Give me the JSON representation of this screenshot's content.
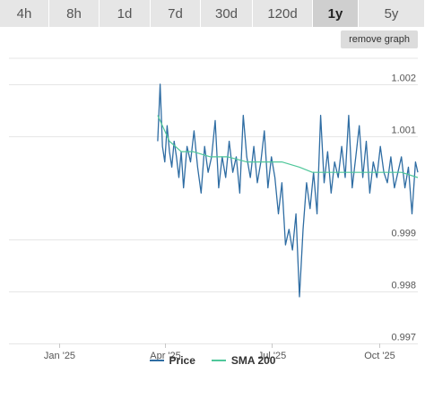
{
  "timeframe_tabs": [
    {
      "label": "4h",
      "active": false
    },
    {
      "label": "8h",
      "active": false
    },
    {
      "label": "1d",
      "active": false
    },
    {
      "label": "7d",
      "active": false
    },
    {
      "label": "30d",
      "active": false
    },
    {
      "label": "120d",
      "active": false
    },
    {
      "label": "1y",
      "active": true
    },
    {
      "label": "5y",
      "active": false
    }
  ],
  "remove_graph_label": "remove graph",
  "colors": {
    "price": "#2f6da3",
    "sma": "#4fc79a",
    "grid": "#e6e6e6",
    "text": "#555555"
  },
  "chart_data": {
    "type": "line",
    "title": "",
    "xlabel": "",
    "ylabel": "",
    "ylim": [
      0.997,
      1.0025
    ],
    "xlim": [
      "2024-11-19",
      "2025-11-03"
    ],
    "x_ticks": [
      {
        "date": "2025-01-01",
        "label": "Jan '25"
      },
      {
        "date": "2025-04-01",
        "label": "Apr '25"
      },
      {
        "date": "2025-07-01",
        "label": "Jul '25"
      },
      {
        "date": "2025-10-01",
        "label": "Oct '25"
      }
    ],
    "y_ticks": [
      {
        "value": 1.002,
        "label": "1.002"
      },
      {
        "value": 1.001,
        "label": "1.001"
      },
      {
        "value": 0.999,
        "label": "0.999"
      },
      {
        "value": 0.998,
        "label": "0.998"
      },
      {
        "value": 0.997,
        "label": "0.997"
      }
    ],
    "legend_position": "bottom",
    "series": [
      {
        "name": "Price",
        "x": [
          "2025-03-26",
          "2025-03-28",
          "2025-03-30",
          "2025-04-01",
          "2025-04-03",
          "2025-04-05",
          "2025-04-07",
          "2025-04-09",
          "2025-04-11",
          "2025-04-13",
          "2025-04-15",
          "2025-04-17",
          "2025-04-20",
          "2025-04-23",
          "2025-04-26",
          "2025-04-29",
          "2025-05-02",
          "2025-05-05",
          "2025-05-08",
          "2025-05-11",
          "2025-05-14",
          "2025-05-17",
          "2025-05-20",
          "2025-05-23",
          "2025-05-26",
          "2025-05-29",
          "2025-06-01",
          "2025-06-04",
          "2025-06-07",
          "2025-06-10",
          "2025-06-13",
          "2025-06-16",
          "2025-06-19",
          "2025-06-22",
          "2025-06-25",
          "2025-06-28",
          "2025-07-01",
          "2025-07-04",
          "2025-07-07",
          "2025-07-10",
          "2025-07-13",
          "2025-07-16",
          "2025-07-19",
          "2025-07-22",
          "2025-07-25",
          "2025-07-28",
          "2025-07-31",
          "2025-08-03",
          "2025-08-06",
          "2025-08-09",
          "2025-08-12",
          "2025-08-15",
          "2025-08-18",
          "2025-08-21",
          "2025-08-24",
          "2025-08-27",
          "2025-08-30",
          "2025-09-02",
          "2025-09-05",
          "2025-09-08",
          "2025-09-11",
          "2025-09-14",
          "2025-09-17",
          "2025-09-20",
          "2025-09-23",
          "2025-09-26",
          "2025-09-29",
          "2025-10-02",
          "2025-10-05",
          "2025-10-08",
          "2025-10-11",
          "2025-10-14",
          "2025-10-17",
          "2025-10-20",
          "2025-10-23",
          "2025-10-26",
          "2025-10-29",
          "2025-11-01",
          "2025-11-03"
        ],
        "values": [
          1.0009,
          1.002,
          1.0008,
          1.0005,
          1.0012,
          1.0007,
          1.0004,
          1.0009,
          1.0006,
          1.0002,
          1.0007,
          1.0,
          1.0008,
          1.0005,
          1.0011,
          1.0004,
          0.9999,
          1.0008,
          1.0003,
          1.0006,
          1.0013,
          1.0,
          1.0006,
          1.0002,
          1.0009,
          1.0003,
          1.0006,
          0.9999,
          1.0014,
          1.0006,
          1.0002,
          1.0008,
          1.0001,
          1.0005,
          1.0011,
          1.0,
          1.0006,
          1.0002,
          0.9995,
          1.0001,
          0.9989,
          0.9992,
          0.9988,
          0.9995,
          0.9979,
          0.9992,
          1.0001,
          0.9996,
          1.0003,
          0.9995,
          1.0014,
          1.0001,
          1.0007,
          0.9999,
          1.0005,
          1.0002,
          1.0008,
          1.0002,
          1.0014,
          1.0,
          1.0006,
          1.0012,
          1.0002,
          1.0009,
          0.9999,
          1.0005,
          1.0002,
          1.0008,
          1.0003,
          1.0001,
          1.0006,
          1.0,
          1.0003,
          1.0006,
          1.0,
          1.0004,
          0.9995,
          1.0005,
          1.0003
        ]
      },
      {
        "name": "SMA 200",
        "x": [
          "2025-03-26",
          "2025-04-05",
          "2025-04-15",
          "2025-04-25",
          "2025-05-10",
          "2025-05-25",
          "2025-06-10",
          "2025-06-25",
          "2025-07-10",
          "2025-07-25",
          "2025-08-05",
          "2025-08-20",
          "2025-09-05",
          "2025-09-20",
          "2025-10-05",
          "2025-10-20",
          "2025-11-03"
        ],
        "values": [
          1.0014,
          1.0009,
          1.0007,
          1.0007,
          1.0006,
          1.0006,
          1.0005,
          1.0005,
          1.0005,
          1.0004,
          1.0003,
          1.0003,
          1.0003,
          1.0003,
          1.0003,
          1.0003,
          1.0002
        ]
      }
    ]
  }
}
